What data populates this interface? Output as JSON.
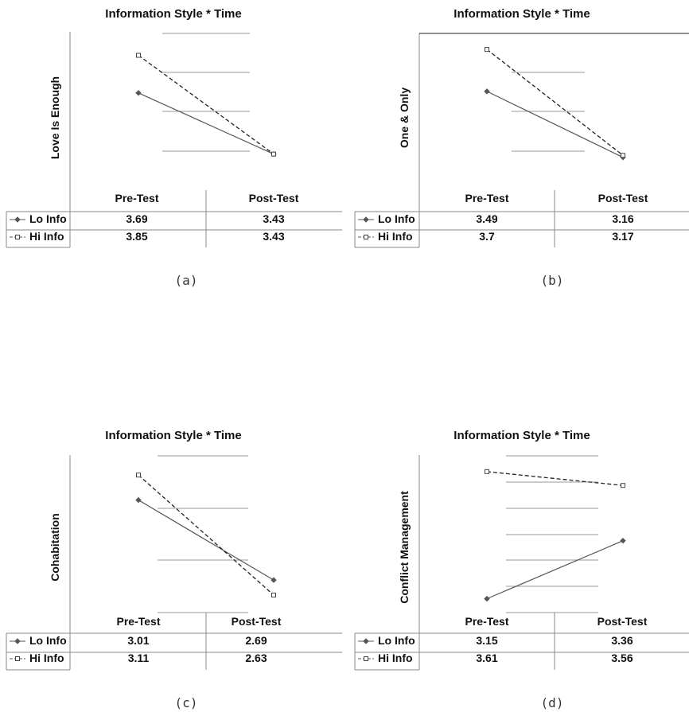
{
  "chart_data": [
    {
      "type": "line",
      "caption": "(a)",
      "title": "Information Style * Time",
      "ylabel": "Love Is Enough",
      "categories": [
        "Pre-Test",
        "Post-Test"
      ],
      "series": [
        {
          "name": "Lo Info",
          "values": [
            3.69,
            3.43
          ],
          "style": "solid",
          "marker": "filled-diamond"
        },
        {
          "name": "Hi Info",
          "values": [
            3.85,
            3.43
          ],
          "style": "dashed",
          "marker": "open-square"
        }
      ],
      "ylim": [
        3.28,
        3.95
      ],
      "grid": true
    },
    {
      "type": "line",
      "caption": "(b)",
      "title": "Information Style * Time",
      "ylabel": "One & Only",
      "categories": [
        "Pre-Test",
        "Post-Test"
      ],
      "series": [
        {
          "name": "Lo Info",
          "values": [
            3.49,
            3.16
          ],
          "style": "solid",
          "marker": "filled-diamond"
        },
        {
          "name": "Hi Info",
          "values": [
            3.7,
            3.17
          ],
          "style": "dashed",
          "marker": "open-square"
        }
      ],
      "ylim": [
        3.0,
        3.78
      ],
      "grid": true
    },
    {
      "type": "line",
      "caption": "(c)",
      "title": "Information Style * Time",
      "ylabel": "Cohabitation",
      "categories": [
        "Pre-Test",
        "Post-Test"
      ],
      "series": [
        {
          "name": "Lo Info",
          "values": [
            3.01,
            2.69
          ],
          "style": "solid",
          "marker": "filled-diamond"
        },
        {
          "name": "Hi Info",
          "values": [
            3.11,
            2.63
          ],
          "style": "dashed",
          "marker": "open-square"
        }
      ],
      "ylim": [
        2.56,
        3.19
      ],
      "grid": true
    },
    {
      "type": "line",
      "caption": "(d)",
      "title": "Information Style * Time",
      "ylabel": "Conflict Management",
      "categories": [
        "Pre-Test",
        "Post-Test"
      ],
      "series": [
        {
          "name": "Lo Info",
          "values": [
            3.15,
            3.36
          ],
          "style": "solid",
          "marker": "filled-diamond"
        },
        {
          "name": "Hi Info",
          "values": [
            3.61,
            3.56
          ],
          "style": "dashed",
          "marker": "open-square"
        }
      ],
      "ylim": [
        3.1,
        3.67
      ],
      "grid": true
    }
  ]
}
